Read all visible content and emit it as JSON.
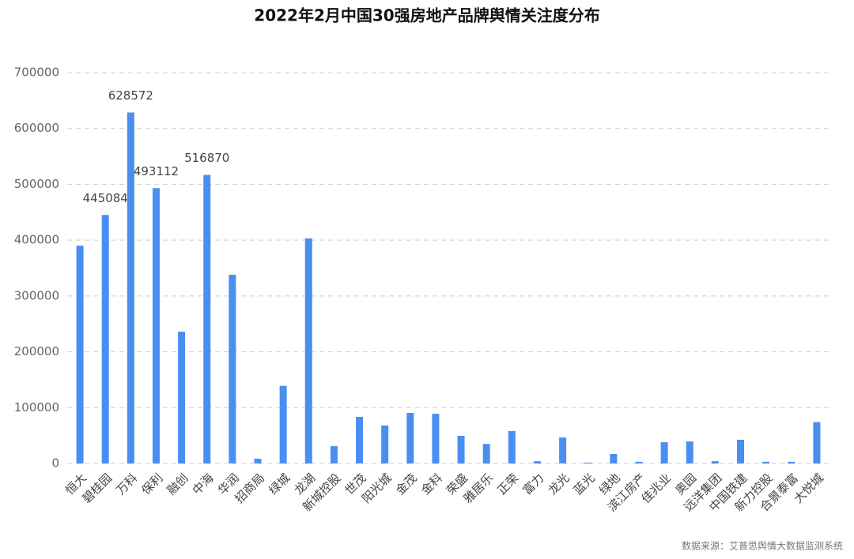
{
  "chart_data": {
    "type": "bar",
    "title": "2022年2月中国30强房地产品牌舆情关注度分布",
    "source": "数据来源：艾普思舆情大数据监测系统",
    "categories": [
      "恒大",
      "碧桂园",
      "万科",
      "保利",
      "融创",
      "中海",
      "华润",
      "招商局",
      "绿城",
      "龙湖",
      "新城控股",
      "世茂",
      "阳光城",
      "金茂",
      "金科",
      "荣盛",
      "雅居乐",
      "正荣",
      "富力",
      "龙光",
      "蓝光",
      "绿地",
      "滨江房产",
      "佳兆业",
      "奥园",
      "远洋集团",
      "中国铁建",
      "新力控股",
      "合景泰富",
      "大悦城"
    ],
    "values": [
      390000,
      445084,
      628572,
      493112,
      236000,
      516870,
      338000,
      8500,
      139000,
      403000,
      31000,
      83500,
      68000,
      90500,
      89000,
      49500,
      35000,
      58000,
      4000,
      46500,
      1500,
      17000,
      3000,
      38000,
      39500,
      4000,
      42500,
      3000,
      3000,
      74000
    ],
    "value_labels": [
      null,
      "445084",
      "628572",
      "493112",
      null,
      "516870",
      null,
      null,
      null,
      null,
      null,
      null,
      null,
      null,
      null,
      null,
      null,
      null,
      null,
      null,
      null,
      null,
      null,
      null,
      null,
      null,
      null,
      null,
      null,
      null
    ],
    "color": "#4a8ef0",
    "ylim": [
      0,
      700000
    ],
    "yticks": [
      0,
      100000,
      200000,
      300000,
      400000,
      500000,
      600000,
      700000
    ],
    "grid": true
  }
}
